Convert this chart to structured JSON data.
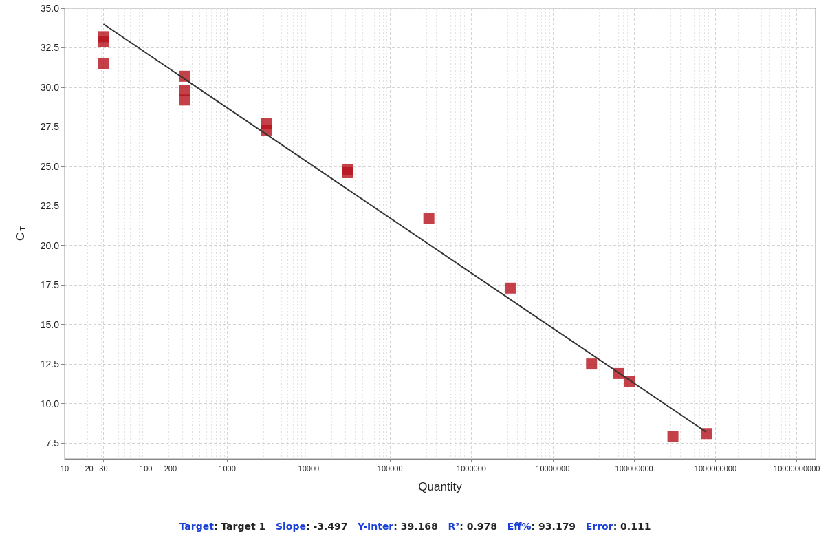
{
  "chart_data": {
    "type": "scatter",
    "xlabel": "Quantity",
    "ylabel": "C$_{T}$",
    "log": "x",
    "grid": true,
    "marker": "square",
    "xlim": [
      10,
      17000000000
    ],
    "xticks": [
      10,
      20,
      30,
      100,
      200,
      1000,
      10000,
      100000,
      1000000,
      10000000,
      100000000,
      1000000000,
      10000000000
    ],
    "ylim": [
      6.5,
      35
    ],
    "yticks": [
      {
        "value": 7.5,
        "label": "7.5"
      },
      {
        "value": 10,
        "label": "10.0"
      },
      {
        "value": 12.5,
        "label": "12.5"
      },
      {
        "value": 15,
        "label": "15.0"
      },
      {
        "value": 17.5,
        "label": "17.5"
      },
      {
        "value": 20,
        "label": "20.0"
      },
      {
        "value": 22.5,
        "label": "22.5"
      },
      {
        "value": 25,
        "label": "25.0"
      },
      {
        "value": 27.5,
        "label": "27.5"
      },
      {
        "value": 30,
        "label": "30.0"
      },
      {
        "value": 32.5,
        "label": "32.5"
      },
      {
        "value": 35,
        "label": "35.0"
      }
    ],
    "series": [
      {
        "color": "#b5121b",
        "x": [
          30,
          30,
          30,
          300,
          300,
          300,
          3000,
          3000,
          30000,
          30000,
          300000,
          3000000,
          30000000,
          65000000,
          87000000,
          300000000,
          770000000
        ],
        "values": [
          33.2,
          32.9,
          31.5,
          30.7,
          29.8,
          29.2,
          27.7,
          27.3,
          24.8,
          24.6,
          21.7,
          17.3,
          12.5,
          11.9,
          11.4,
          7.9,
          8.1
        ]
      },
      {
        "type": "line",
        "color": "#333333",
        "marker": "none",
        "x": [
          30,
          770000000
        ],
        "values": [
          34.0,
          8.2
        ]
      }
    ],
    "annotations": [
      "Target: Target 1",
      "Slope: -3.497",
      "Y-Inter: 39.168",
      "R²: 0.978",
      "Eff%: 93.179",
      "Error: 0.111"
    ]
  }
}
